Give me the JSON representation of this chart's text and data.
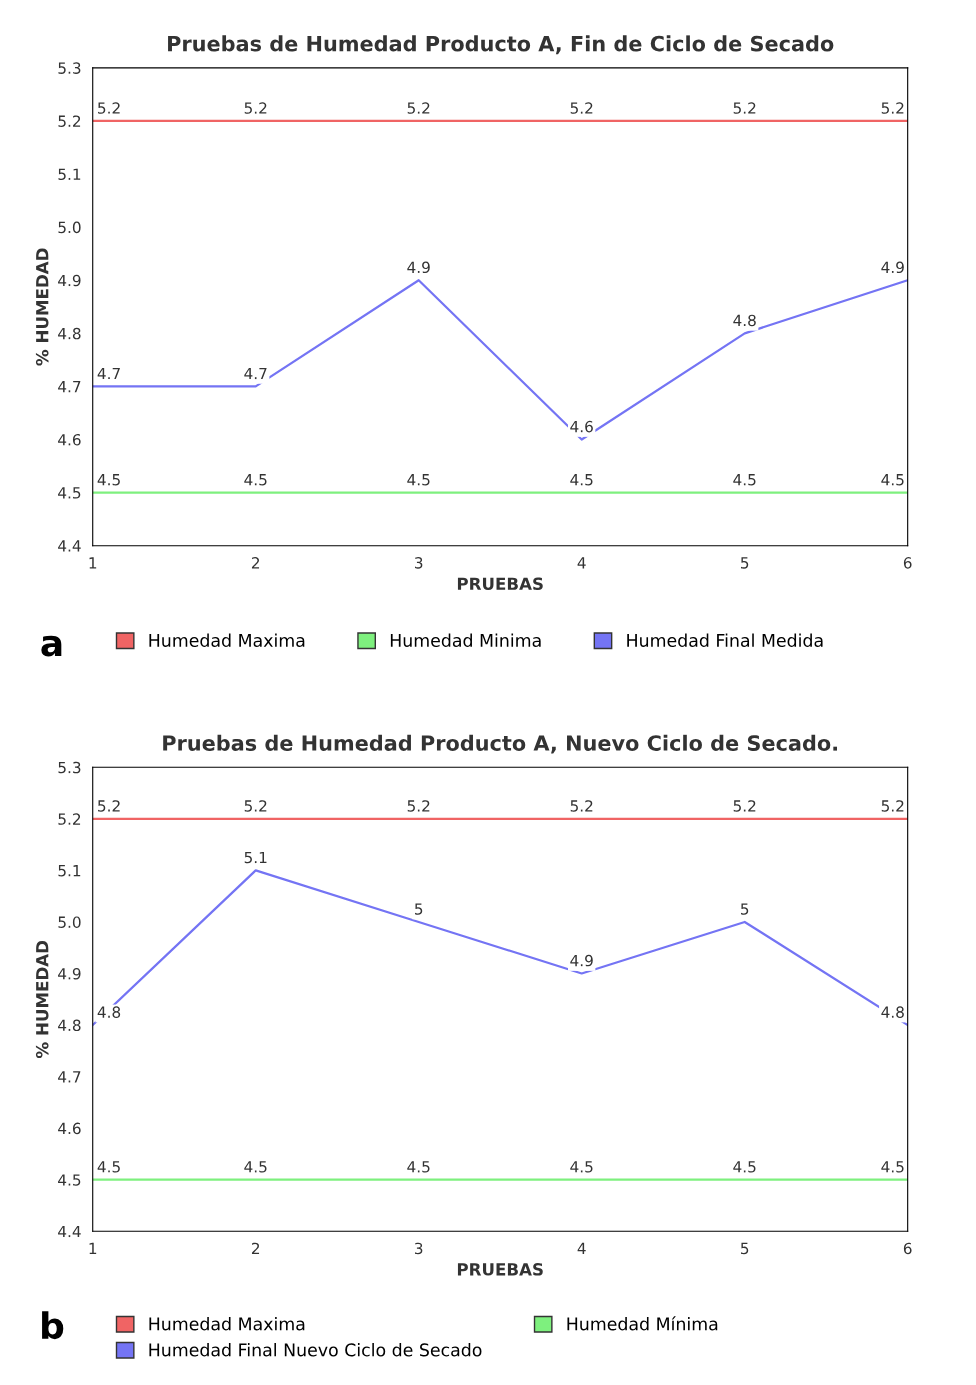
{
  "chart_data": [
    {
      "type": "line",
      "title": "Pruebas de Humedad Producto A, Fin de Ciclo de Secado",
      "xlabel": "PRUEBAS",
      "ylabel": "% HUMEDAD",
      "x": [
        1,
        2,
        3,
        4,
        5,
        6
      ],
      "xlim": [
        1,
        6
      ],
      "xticks": [
        1,
        2,
        3,
        4,
        5,
        6
      ],
      "ylim": [
        4.4,
        5.3
      ],
      "yticks": [
        4.4,
        4.5,
        4.6,
        4.7,
        4.8,
        4.9,
        {
          "value": 5.0,
          "label": "5.0"
        },
        5.1,
        5.2,
        5.3
      ],
      "series": [
        {
          "name": "Humedad Maxima",
          "color": "#f06464",
          "values": [
            5.2,
            5.2,
            5.2,
            5.2,
            5.2,
            5.2
          ]
        },
        {
          "name": "Humedad Minima",
          "color": "#7ef07e",
          "values": [
            4.5,
            4.5,
            4.5,
            4.5,
            4.5,
            4.5
          ]
        },
        {
          "name": "Humedad Final Medida",
          "color": "#7474f4",
          "values": [
            4.7,
            4.7,
            4.9,
            4.6,
            4.8,
            4.9
          ]
        }
      ],
      "data_labels": true,
      "grid": false,
      "legend": "bottom",
      "marker": "none",
      "line_style": "solid",
      "annotations": [
        "a"
      ]
    },
    {
      "type": "line",
      "title": "Pruebas de Humedad Producto A, Nuevo Ciclo de Secado.",
      "xlabel": "PRUEBAS",
      "ylabel": "% HUMEDAD",
      "x": [
        1,
        2,
        3,
        4,
        5,
        6
      ],
      "xlim": [
        1,
        6
      ],
      "xticks": [
        1,
        2,
        3,
        4,
        5,
        6
      ],
      "ylim": [
        4.4,
        5.3
      ],
      "yticks": [
        4.4,
        4.5,
        4.6,
        4.7,
        4.8,
        4.9,
        {
          "value": 5.0,
          "label": "5.0"
        },
        5.1,
        5.2,
        5.3
      ],
      "series": [
        {
          "name": "Humedad Maxima",
          "color": "#f06464",
          "values": [
            5.2,
            5.2,
            5.2,
            5.2,
            5.2,
            5.2
          ]
        },
        {
          "name": "Humedad Mínima",
          "color": "#7ef07e",
          "values": [
            4.5,
            4.5,
            4.5,
            4.5,
            4.5,
            4.5
          ]
        },
        {
          "name": "Humedad Final Nuevo Ciclo de Secado",
          "color": "#7474f4",
          "values": [
            4.8,
            5.1,
            5,
            4.9,
            5,
            4.8
          ]
        }
      ],
      "data_labels": true,
      "grid": false,
      "legend": "bottom",
      "marker": "none",
      "line_style": "solid",
      "annotations": [
        "b"
      ]
    }
  ]
}
